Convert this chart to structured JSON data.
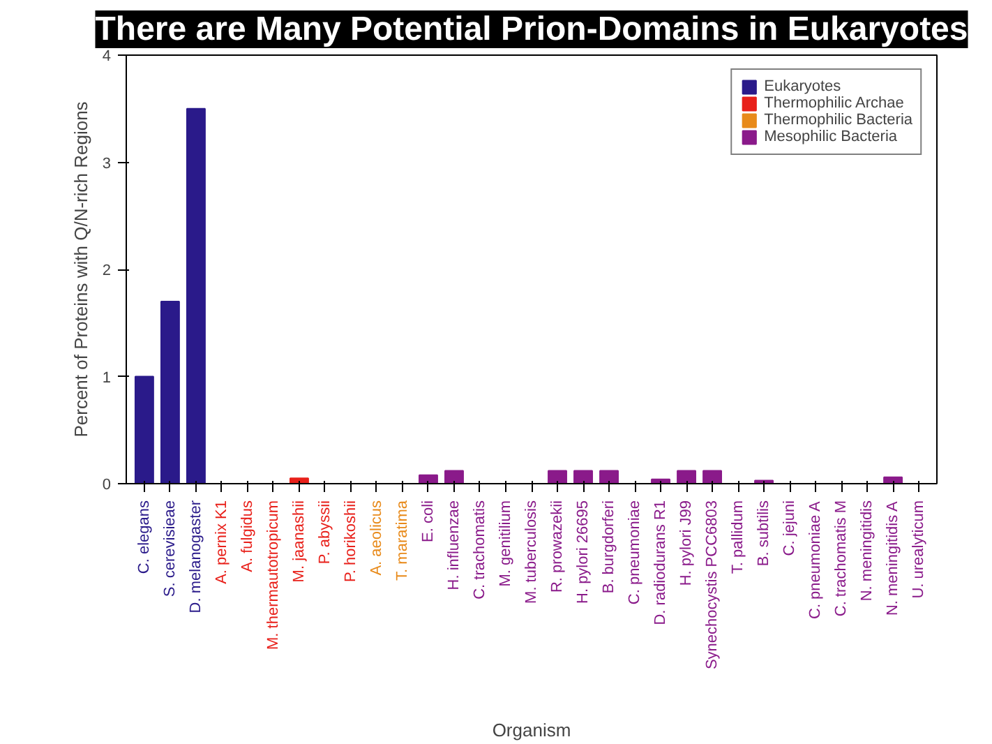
{
  "chart_data": {
    "type": "bar",
    "title": "There are Many Potential Prion-Domains in Eukaryotes",
    "xlabel": "Organism",
    "ylabel": "Percent of Proteins with Q/N-rich Regions",
    "categories": [
      "C. elegans",
      "S. cerevisieae",
      "D. melanogaster",
      "A. pernix K1",
      "A. fulgidus",
      "M. thermautotropicum",
      "M. jaanashii",
      "P. abyssii",
      "P. horikoshii",
      "A. aeolicus",
      "T. maratima",
      "E. coli",
      "H. influenzae",
      "C. trachomatis",
      "M. genitilium",
      "M. tuberculosis",
      "R. prowazekii",
      "H. pylori 26695",
      "B. burgdorferi",
      "C. pneumoniae",
      "D. radiodurans R1",
      "H. pylori J99",
      "Synechocystis PCC6803",
      "T. pallidum",
      "B. subtilis",
      "C. jejuni",
      "C. pneumoniae A",
      "C. trachomatis M",
      "N. meningitidis",
      "N. meningitidis A",
      "U. urealyticum"
    ],
    "series": [
      {
        "name": "Eukaryotes",
        "color": "#2a1a8a",
        "values": [
          1.0,
          1.7,
          3.5,
          null,
          null,
          null,
          null,
          null,
          null,
          null,
          null,
          null,
          null,
          null,
          null,
          null,
          null,
          null,
          null,
          null,
          null,
          null,
          null,
          null,
          null,
          null,
          null,
          null,
          null,
          null,
          null
        ]
      },
      {
        "name": "Thermophilic Archae",
        "color": "#e8201a",
        "values": [
          null,
          null,
          null,
          0,
          0,
          0,
          0.05,
          0,
          0,
          null,
          null,
          null,
          null,
          null,
          null,
          null,
          null,
          null,
          null,
          null,
          null,
          null,
          null,
          null,
          null,
          null,
          null,
          null,
          null,
          null,
          null
        ]
      },
      {
        "name": "Thermophilic Bacteria",
        "color": "#e88a1a",
        "values": [
          null,
          null,
          null,
          null,
          null,
          null,
          null,
          null,
          null,
          0,
          0,
          null,
          null,
          null,
          null,
          null,
          null,
          null,
          null,
          null,
          null,
          null,
          null,
          null,
          null,
          null,
          null,
          null,
          null,
          null,
          null
        ]
      },
      {
        "name": "Mesophilic Bacteria",
        "color": "#8a1a8a",
        "values": [
          null,
          null,
          null,
          null,
          null,
          null,
          null,
          null,
          null,
          null,
          null,
          0.08,
          0.12,
          0,
          0,
          0,
          0.12,
          0.12,
          0.12,
          0,
          0.04,
          0.12,
          0.12,
          0,
          0.03,
          0,
          0,
          0,
          0,
          0.06,
          0
        ]
      }
    ],
    "ylim": [
      0,
      4
    ],
    "yticks": [
      0,
      1,
      2,
      3,
      4
    ],
    "grid": false,
    "legend": "top right"
  }
}
